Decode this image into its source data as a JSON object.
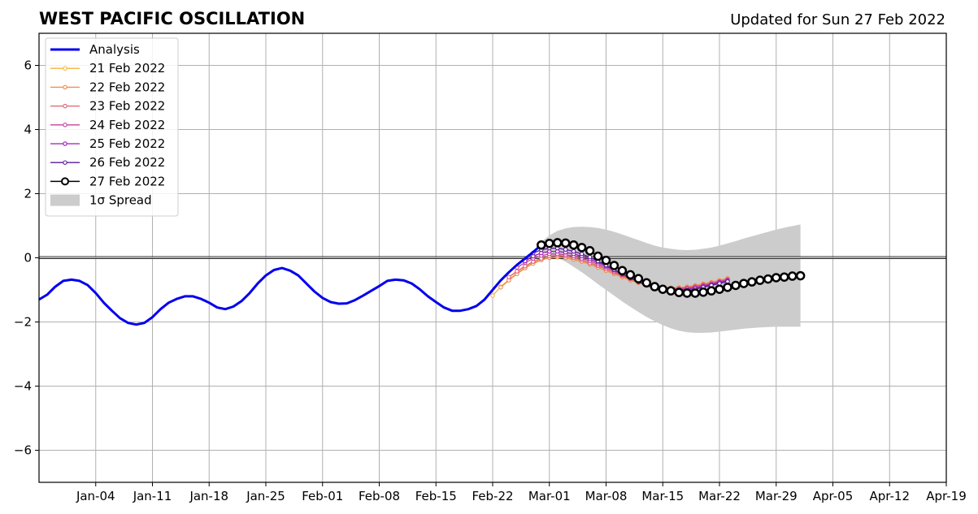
{
  "chart_data": {
    "type": "line",
    "title": "WEST PACIFIC OSCILLATION",
    "subtitle": "Updated for Sun 27 Feb 2022",
    "xlabel": "",
    "ylabel": "",
    "xlim": [
      "2021-12-28",
      "2022-04-19"
    ],
    "ylim": [
      -7,
      7
    ],
    "grid": true,
    "legend_position": "top-left",
    "x_tick_labels": [
      "Jan-04",
      "Jan-11",
      "Jan-18",
      "Jan-25",
      "Feb-01",
      "Feb-08",
      "Feb-15",
      "Feb-22",
      "Mar-01",
      "Mar-08",
      "Mar-15",
      "Mar-22",
      "Mar-29",
      "Apr-05",
      "Apr-12",
      "Apr-19"
    ],
    "y_ticks": [
      -6,
      -4,
      -2,
      0,
      2,
      4,
      6
    ],
    "y_tick_labels": [
      "−6",
      "−4",
      "−2",
      "0",
      "2",
      "4",
      "6"
    ],
    "analysis": {
      "name": "Analysis",
      "color": "#0000ee",
      "x": [
        "2021-12-28",
        "2021-12-29",
        "2021-12-30",
        "2021-12-31",
        "2022-01-01",
        "2022-01-02",
        "2022-01-03",
        "2022-01-04",
        "2022-01-05",
        "2022-01-06",
        "2022-01-07",
        "2022-01-08",
        "2022-01-09",
        "2022-01-10",
        "2022-01-11",
        "2022-01-12",
        "2022-01-13",
        "2022-01-14",
        "2022-01-15",
        "2022-01-16",
        "2022-01-17",
        "2022-01-18",
        "2022-01-19",
        "2022-01-20",
        "2022-01-21",
        "2022-01-22",
        "2022-01-23",
        "2022-01-24",
        "2022-01-25",
        "2022-01-26",
        "2022-01-27",
        "2022-01-28",
        "2022-01-29",
        "2022-01-30",
        "2022-01-31",
        "2022-02-01",
        "2022-02-02",
        "2022-02-03",
        "2022-02-04",
        "2022-02-05",
        "2022-02-06",
        "2022-02-07",
        "2022-02-08",
        "2022-02-09",
        "2022-02-10",
        "2022-02-11",
        "2022-02-12",
        "2022-02-13",
        "2022-02-14",
        "2022-02-15",
        "2022-02-16",
        "2022-02-17",
        "2022-02-18",
        "2022-02-19",
        "2022-02-20",
        "2022-02-21",
        "2022-02-22",
        "2022-02-23",
        "2022-02-24",
        "2022-02-25",
        "2022-02-26",
        "2022-02-27",
        "2022-02-28"
      ],
      "y": [
        -1.3,
        -1.15,
        -0.9,
        -0.72,
        -0.68,
        -0.72,
        -0.85,
        -1.1,
        -1.4,
        -1.65,
        -1.88,
        -2.03,
        -2.08,
        -2.03,
        -1.85,
        -1.6,
        -1.4,
        -1.28,
        -1.2,
        -1.2,
        -1.28,
        -1.4,
        -1.55,
        -1.6,
        -1.52,
        -1.35,
        -1.1,
        -0.8,
        -0.55,
        -0.38,
        -0.32,
        -0.4,
        -0.55,
        -0.8,
        -1.05,
        -1.25,
        -1.38,
        -1.43,
        -1.42,
        -1.32,
        -1.18,
        -1.03,
        -0.88,
        -0.72,
        -0.68,
        -0.7,
        -0.8,
        -0.98,
        -1.2,
        -1.38,
        -1.55,
        -1.65,
        -1.65,
        -1.6,
        -1.5,
        -1.3,
        -1.0,
        -0.7,
        -0.45,
        -0.22,
        -0.02,
        0.18,
        0.4
      ]
    },
    "forecasts": [
      {
        "name": "21 Feb 2022",
        "color": "#f7b33a",
        "x0": "2022-02-22",
        "y": [
          -1.18,
          -0.9,
          -0.68,
          -0.48,
          -0.3,
          -0.16,
          -0.06,
          0.0,
          0.02,
          0.0,
          -0.05,
          -0.12,
          -0.2,
          -0.3,
          -0.4,
          -0.5,
          -0.6,
          -0.7,
          -0.78,
          -0.85,
          -0.9,
          -0.93,
          -0.94,
          -0.93,
          -0.9,
          -0.87,
          -0.82,
          -0.77,
          -0.72,
          -0.66
        ]
      },
      {
        "name": "22 Feb 2022",
        "color": "#f0894a",
        "x0": "2022-02-23",
        "y": [
          -0.92,
          -0.7,
          -0.5,
          -0.32,
          -0.18,
          -0.07,
          0.0,
          0.02,
          0.0,
          -0.05,
          -0.12,
          -0.2,
          -0.3,
          -0.4,
          -0.5,
          -0.6,
          -0.7,
          -0.78,
          -0.85,
          -0.9,
          -0.93,
          -0.94,
          -0.93,
          -0.9,
          -0.86,
          -0.81,
          -0.76,
          -0.7,
          -0.64
        ]
      },
      {
        "name": "23 Feb 2022",
        "color": "#e0606e",
        "x0": "2022-02-24",
        "y": [
          -0.6,
          -0.42,
          -0.26,
          -0.12,
          -0.02,
          0.05,
          0.07,
          0.05,
          0.0,
          -0.07,
          -0.16,
          -0.25,
          -0.35,
          -0.46,
          -0.56,
          -0.66,
          -0.75,
          -0.83,
          -0.89,
          -0.93,
          -0.95,
          -0.95,
          -0.93,
          -0.89,
          -0.84,
          -0.79,
          -0.73,
          -0.67
        ]
      },
      {
        "name": "24 Feb 2022",
        "color": "#c4439a",
        "x0": "2022-02-25",
        "y": [
          -0.3,
          -0.15,
          -0.02,
          0.07,
          0.12,
          0.12,
          0.1,
          0.05,
          -0.02,
          -0.1,
          -0.2,
          -0.3,
          -0.42,
          -0.53,
          -0.64,
          -0.74,
          -0.83,
          -0.9,
          -0.95,
          -0.97,
          -0.97,
          -0.95,
          -0.91,
          -0.86,
          -0.81,
          -0.75,
          -0.69
        ]
      },
      {
        "name": "25 Feb 2022",
        "color": "#9a1ab0",
        "x0": "2022-02-26",
        "y": [
          -0.1,
          0.05,
          0.15,
          0.2,
          0.2,
          0.17,
          0.12,
          0.05,
          -0.04,
          -0.14,
          -0.26,
          -0.38,
          -0.5,
          -0.62,
          -0.73,
          -0.83,
          -0.91,
          -0.97,
          -1.0,
          -1.0,
          -0.98,
          -0.94,
          -0.89,
          -0.83,
          -0.77,
          -0.71
        ]
      },
      {
        "name": "26 Feb 2022",
        "color": "#5a1a9a",
        "x0": "2022-02-27",
        "y": [
          0.15,
          0.25,
          0.3,
          0.3,
          0.26,
          0.2,
          0.12,
          0.02,
          -0.1,
          -0.23,
          -0.37,
          -0.5,
          -0.63,
          -0.75,
          -0.86,
          -0.95,
          -1.02,
          -1.05,
          -1.05,
          -1.02,
          -0.98,
          -0.92,
          -0.86,
          -0.8,
          -0.74
        ]
      },
      {
        "name": "27 Feb 2022",
        "color": "#000000",
        "x0": "2022-02-28",
        "y": [
          0.4,
          0.45,
          0.47,
          0.46,
          0.4,
          0.32,
          0.22,
          0.05,
          -0.08,
          -0.24,
          -0.4,
          -0.53,
          -0.65,
          -0.78,
          -0.9,
          -0.98,
          -1.03,
          -1.08,
          -1.1,
          -1.1,
          -1.07,
          -1.03,
          -0.98,
          -0.92,
          -0.86,
          -0.8,
          -0.75,
          -0.7,
          -0.66,
          -0.62,
          -0.6,
          -0.57,
          -0.56
        ]
      }
    ],
    "spread": {
      "name": "1σ Spread",
      "color": "#cccccc",
      "x0": "2022-02-28",
      "upper": [
        0.5,
        0.7,
        0.84,
        0.92,
        0.96,
        0.97,
        0.96,
        0.93,
        0.88,
        0.81,
        0.73,
        0.64,
        0.55,
        0.46,
        0.38,
        0.32,
        0.28,
        0.25,
        0.24,
        0.25,
        0.28,
        0.32,
        0.38,
        0.45,
        0.52,
        0.6,
        0.67,
        0.74,
        0.81,
        0.88,
        0.94,
        0.99,
        1.04
      ],
      "lower": [
        0.18,
        0.1,
        0.0,
        -0.12,
        -0.28,
        -0.45,
        -0.63,
        -0.82,
        -1.0,
        -1.18,
        -1.36,
        -1.53,
        -1.69,
        -1.84,
        -1.98,
        -2.1,
        -2.2,
        -2.27,
        -2.32,
        -2.34,
        -2.34,
        -2.33,
        -2.3,
        -2.27,
        -2.24,
        -2.21,
        -2.19,
        -2.17,
        -2.16,
        -2.15,
        -2.15,
        -2.15,
        -2.15
      ]
    }
  }
}
